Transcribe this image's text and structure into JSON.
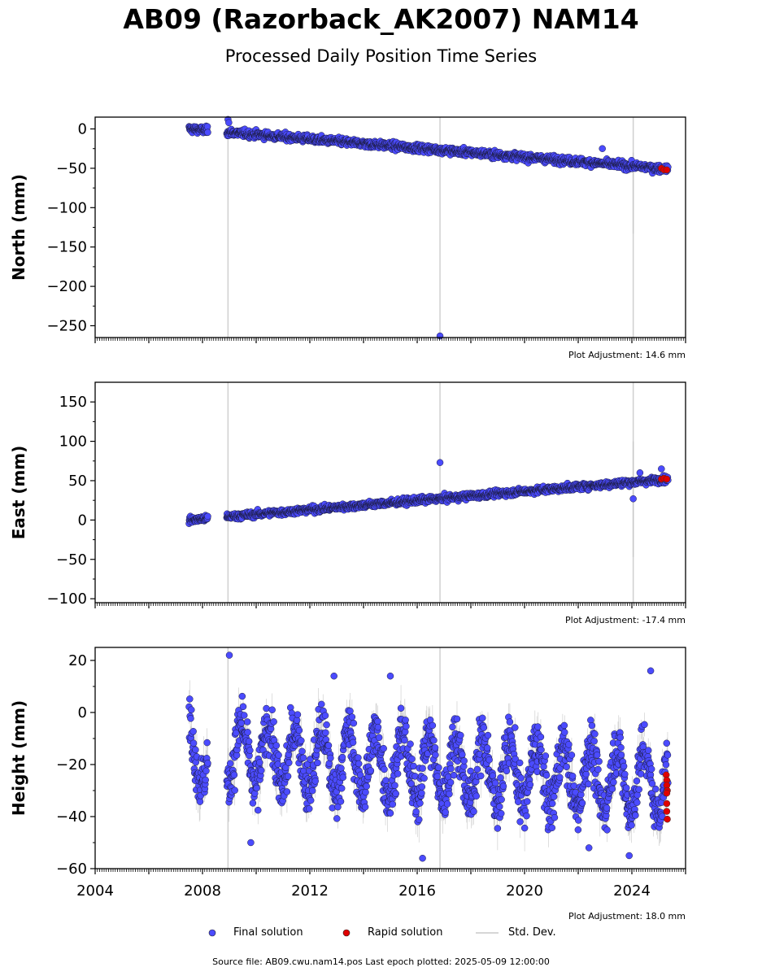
{
  "header": {
    "title": "AB09 (Razorback_AK2007) NAM14",
    "subtitle": "Processed Daily Position Time Series"
  },
  "legend": {
    "final_label": "Final solution",
    "rapid_label": "Rapid solution",
    "stddev_label": "Std. Dev.",
    "final_color": "#4b4bff",
    "rapid_color": "#e00000",
    "stddev_color": "#c8c8c8"
  },
  "footer": "Source file: AB09.cwu.nam14.pos  Last epoch plotted: 2025-05-09 12:00:00",
  "chart_data": [
    {
      "type": "scatter",
      "ylabel": "North (mm)",
      "xlim": [
        2004,
        2026
      ],
      "ylim": [
        -265,
        15
      ],
      "yticks": [
        0,
        -50,
        -100,
        -150,
        -200,
        -250
      ],
      "yticklabels": [
        "0",
        "−50",
        "−100",
        "−150",
        "−200",
        "−250"
      ],
      "adjustment": "Plot Adjustment: 14.6 mm",
      "trend": {
        "start": 2007.5,
        "end": 2025.35,
        "y0": 0,
        "y1": -51,
        "noise": 3.2,
        "seasonal": 0,
        "gaps": [
          [
            2008.2,
            2008.9
          ]
        ]
      },
      "breaks": [
        2008.95,
        2016.85,
        2024.05
      ],
      "stddev_spikes": [
        {
          "x": 2024.05,
          "y0": -30,
          "y1": -133
        }
      ],
      "outliers": [
        {
          "x": 2008.95,
          "y": 12
        },
        {
          "x": 2008.98,
          "y": 8
        },
        {
          "x": 2016.85,
          "y": -263
        },
        {
          "x": 2022.9,
          "y": -25
        }
      ],
      "rapid": {
        "x": [
          2025.1,
          2025.2,
          2025.3
        ],
        "y": [
          -50,
          -52,
          -52
        ]
      }
    },
    {
      "type": "scatter",
      "ylabel": "East (mm)",
      "xlim": [
        2004,
        2026
      ],
      "ylim": [
        -105,
        175
      ],
      "yticks": [
        150,
        100,
        50,
        0,
        -50,
        -100
      ],
      "yticklabels": [
        "150",
        "100",
        "50",
        "0",
        "−50",
        "−100"
      ],
      "adjustment": "Plot Adjustment: -17.4 mm",
      "trend": {
        "start": 2007.5,
        "end": 2025.35,
        "y0": 0,
        "y1": 52,
        "noise": 2.8,
        "seasonal": 0,
        "gaps": [
          [
            2008.2,
            2008.9
          ]
        ]
      },
      "breaks": [
        2008.95,
        2016.85,
        2024.05
      ],
      "stddev_spikes": [
        {
          "x": 2024.05,
          "y0": 100,
          "y1": -47
        }
      ],
      "outliers": [
        {
          "x": 2016.85,
          "y": 73
        },
        {
          "x": 2024.05,
          "y": 27
        },
        {
          "x": 2024.3,
          "y": 60
        },
        {
          "x": 2025.1,
          "y": 65
        }
      ],
      "rapid": {
        "x": [
          2025.1,
          2025.2,
          2025.3
        ],
        "y": [
          52,
          53,
          52
        ]
      }
    },
    {
      "type": "scatter",
      "ylabel": "Height (mm)",
      "xlim": [
        2004,
        2026
      ],
      "ylim": [
        -60,
        25
      ],
      "yticks": [
        20,
        0,
        -20,
        -40,
        -60
      ],
      "yticklabels": [
        "20",
        "0",
        "−20",
        "−40",
        "−60"
      ],
      "xticks": [
        2004,
        2008,
        2012,
        2016,
        2020,
        2024
      ],
      "xticklabels": [
        "2004",
        "2008",
        "2012",
        "2016",
        "2020",
        "2024"
      ],
      "adjustment": "Plot Adjustment: 18.0 mm",
      "trend": {
        "start": 2007.5,
        "end": 2025.35,
        "y0": -15,
        "y1": -27,
        "noise": 7,
        "seasonal": 12,
        "gaps": [
          [
            2008.2,
            2008.9
          ]
        ]
      },
      "breaks": [
        2008.95,
        2016.85
      ],
      "stddev_spikes": [],
      "outliers": [
        {
          "x": 2009.0,
          "y": 22
        },
        {
          "x": 2024.7,
          "y": 16
        },
        {
          "x": 2016.2,
          "y": -56
        },
        {
          "x": 2022.4,
          "y": -52
        },
        {
          "x": 2023.9,
          "y": -55
        },
        {
          "x": 2009.8,
          "y": -50
        },
        {
          "x": 2015.0,
          "y": 14
        },
        {
          "x": 2012.9,
          "y": 14
        }
      ],
      "rapid": {
        "x": [
          2025.28,
          2025.3,
          2025.3,
          2025.32,
          2025.3,
          2025.3,
          2025.32,
          2025.3
        ],
        "y": [
          -24,
          -26,
          -28,
          -30,
          -35,
          -38,
          -41,
          -31
        ]
      }
    }
  ]
}
